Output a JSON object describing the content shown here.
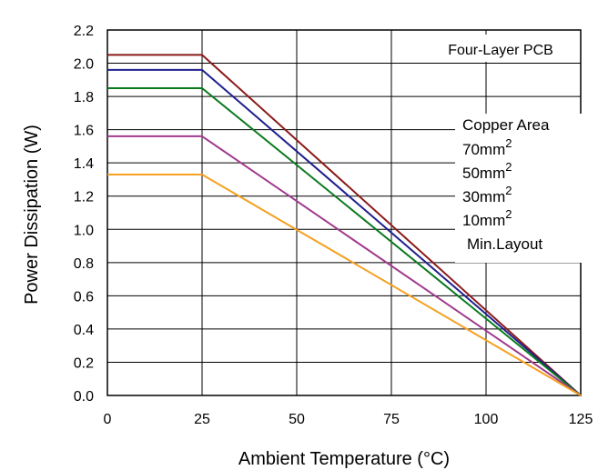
{
  "chart_data": {
    "type": "line",
    "xlabel": "Ambient Temperature (°C)",
    "ylabel": "Power Dissipation (W)",
    "annotation": "Four-Layer PCB",
    "xlim": [
      0,
      125
    ],
    "ylim": [
      0,
      2.2
    ],
    "xticks": [
      "0",
      "25",
      "50",
      "75",
      "100",
      "125"
    ],
    "yticks": [
      "0.0",
      "0.2",
      "0.4",
      "0.6",
      "0.8",
      "1.0",
      "1.2",
      "1.4",
      "1.6",
      "1.8",
      "2.0",
      "2.2"
    ],
    "grid": true,
    "x": [
      0,
      25,
      125
    ],
    "legend_title": {
      "text": "Copper Area",
      "color": "#8B1A1A"
    },
    "legend_position": "right",
    "series": [
      {
        "name": "70mm",
        "sup": "2",
        "color": "#8B1A1A",
        "values": [
          2.05,
          2.05,
          0
        ]
      },
      {
        "name": "50mm",
        "sup": "2",
        "color": "#1F1F8F",
        "values": [
          1.96,
          1.96,
          0
        ]
      },
      {
        "name": "30mm",
        "sup": "2",
        "color": "#0A7A1E",
        "values": [
          1.85,
          1.85,
          0
        ]
      },
      {
        "name": "10mm",
        "sup": "2",
        "color": "#A03A8C",
        "values": [
          1.56,
          1.56,
          0
        ]
      },
      {
        "name": "Min.Layout",
        "sup": "",
        "color": "#F5A020",
        "values": [
          1.33,
          1.33,
          0
        ]
      }
    ]
  }
}
